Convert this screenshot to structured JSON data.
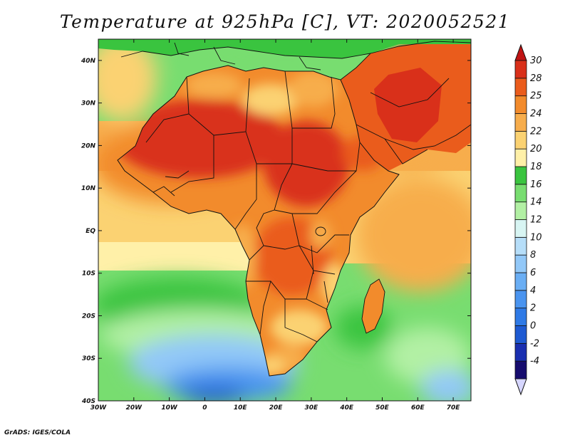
{
  "title": "Temperature at 925hPa [C], VT: 2020052521",
  "credit": "GrADS: IGES/COLA",
  "map": {
    "projection": "lat-lon",
    "lon_range": [
      -30,
      75
    ],
    "lat_range": [
      -40,
      45
    ],
    "lon_ticks": [
      {
        "value": -30,
        "label": "30W"
      },
      {
        "value": -20,
        "label": "20W"
      },
      {
        "value": -10,
        "label": "10W"
      },
      {
        "value": 0,
        "label": "0"
      },
      {
        "value": 10,
        "label": "10E"
      },
      {
        "value": 20,
        "label": "20E"
      },
      {
        "value": 30,
        "label": "30E"
      },
      {
        "value": 40,
        "label": "40E"
      },
      {
        "value": 50,
        "label": "50E"
      },
      {
        "value": 60,
        "label": "60E"
      },
      {
        "value": 70,
        "label": "70E"
      }
    ],
    "lat_ticks": [
      {
        "value": 40,
        "label": "40N"
      },
      {
        "value": 30,
        "label": "30N"
      },
      {
        "value": 20,
        "label": "20N"
      },
      {
        "value": 10,
        "label": "10N"
      },
      {
        "value": 0,
        "label": "EQ"
      },
      {
        "value": -10,
        "label": "10S"
      },
      {
        "value": -20,
        "label": "20S"
      },
      {
        "value": -30,
        "label": "30S"
      },
      {
        "value": -40,
        "label": "40S"
      }
    ]
  },
  "colorbar": {
    "levels": [
      {
        "label": "-4",
        "color": "#160c6e"
      },
      {
        "label": "-2",
        "color": "#1a2fb0"
      },
      {
        "label": "0",
        "color": "#1e5ad2"
      },
      {
        "label": "2",
        "color": "#2f7ae6"
      },
      {
        "label": "4",
        "color": "#4a94ef"
      },
      {
        "label": "6",
        "color": "#6aaef4"
      },
      {
        "label": "8",
        "color": "#92c8f8"
      },
      {
        "label": "10",
        "color": "#b6def9"
      },
      {
        "label": "12",
        "color": "#d8f5f3"
      },
      {
        "label": "14",
        "color": "#b2f0a4"
      },
      {
        "label": "16",
        "color": "#78dd70"
      },
      {
        "label": "18",
        "color": "#3ac43f"
      },
      {
        "label": "20",
        "color": "#fff0a8"
      },
      {
        "label": "22",
        "color": "#fbd272"
      },
      {
        "label": "24",
        "color": "#f7ad4c"
      },
      {
        "label": "25",
        "color": "#f28b2c"
      },
      {
        "label": "28",
        "color": "#ea5c1c"
      },
      {
        "label": "30",
        "color": "#d9301a"
      }
    ],
    "under_color": "#d6d6ff",
    "over_color": "#c01414"
  }
}
